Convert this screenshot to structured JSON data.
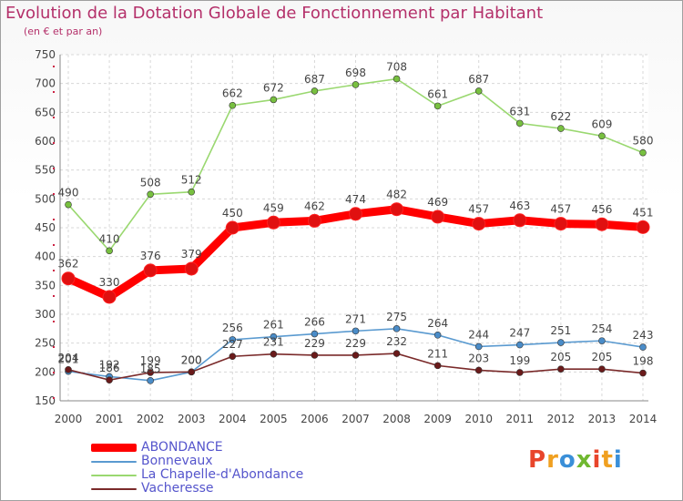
{
  "header": {
    "title": "Evolution de la Dotation Globale de Fonctionnement par Habitant",
    "subtitle": "(en € et par an)"
  },
  "logo": {
    "text": "Proxiti",
    "colors": [
      "#e8452b",
      "#f0a020",
      "#3a8fd8",
      "#70b830",
      "#e8452b",
      "#f0a020",
      "#3a8fd8"
    ]
  },
  "chart_data": {
    "type": "line",
    "x": [
      "2000",
      "2001",
      "2002",
      "2003",
      "2004",
      "2005",
      "2006",
      "2007",
      "2008",
      "2009",
      "2010",
      "2011",
      "2012",
      "2013",
      "2014"
    ],
    "ylim": [
      150,
      750
    ],
    "yticks": [
      150,
      200,
      250,
      300,
      350,
      400,
      450,
      500,
      550,
      600,
      650,
      700,
      750
    ],
    "grid": true,
    "legend_position": "bottom-left",
    "series": [
      {
        "name": "ABONDANCE",
        "color": "#ff0000",
        "point_color": "#e01010",
        "emphasis": true,
        "values": [
          362,
          330,
          376,
          379,
          450,
          459,
          462,
          474,
          482,
          469,
          457,
          463,
          457,
          456,
          451
        ]
      },
      {
        "name": "Bonnevaux",
        "color": "#5a9ad0",
        "point_color": "#4a8cc8",
        "emphasis": false,
        "values": [
          201,
          192,
          185,
          200,
          256,
          261,
          266,
          271,
          275,
          264,
          244,
          247,
          251,
          254,
          243
        ]
      },
      {
        "name": "La Chapelle-d'Abondance",
        "color": "#9ad870",
        "point_color": "#78c040",
        "emphasis": false,
        "values": [
          490,
          410,
          508,
          512,
          662,
          672,
          687,
          698,
          708,
          661,
          687,
          631,
          622,
          609,
          580
        ]
      },
      {
        "name": "Vacheresse",
        "color": "#7a2a2a",
        "point_color": "#6a1a1a",
        "emphasis": false,
        "values": [
          204,
          186,
          199,
          200,
          227,
          231,
          229,
          229,
          232,
          211,
          203,
          199,
          205,
          205,
          198
        ]
      }
    ]
  }
}
